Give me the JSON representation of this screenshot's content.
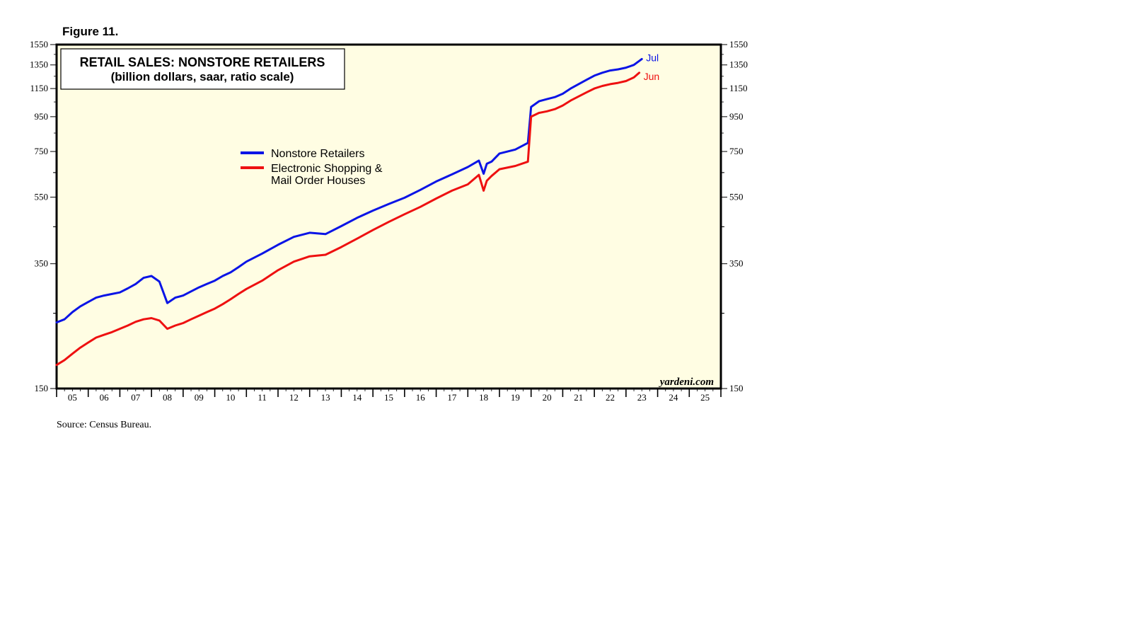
{
  "figure_label": "Figure 11.",
  "source": "Source: Census Bureau.",
  "watermark": "yardeni.com",
  "colors": {
    "plot_bg": "#fffde3",
    "series1": "#0a14e6",
    "series2": "#ee1010",
    "frame": "#000000"
  },
  "chart_data": {
    "type": "line",
    "title": "RETAIL SALES: NONSTORE RETAILERS",
    "subtitle": "(billion dollars, saar, ratio scale)",
    "y_scale": "log",
    "ylim": [
      150,
      1550
    ],
    "y_ticks": [
      150,
      350,
      550,
      750,
      950,
      1150,
      1350,
      1550
    ],
    "y_minor_ticks": [
      250,
      450,
      650
    ],
    "xlim": [
      2005.0,
      2026.0
    ],
    "x_tick_labels": [
      "05",
      "06",
      "07",
      "08",
      "09",
      "10",
      "11",
      "12",
      "13",
      "14",
      "15",
      "16",
      "17",
      "18",
      "19",
      "20",
      "21",
      "22",
      "23",
      "24",
      "25"
    ],
    "legend": [
      "Nonstore Retailers",
      "Electronic Shopping & Mail Order Houses"
    ],
    "series": [
      {
        "name": "Nonstore Retailers",
        "color": "#0a14e6",
        "end_label": "Jul",
        "x": [
          2005.0,
          2005.25,
          2005.5,
          2005.75,
          2006.0,
          2006.25,
          2006.5,
          2006.75,
          2007.0,
          2007.25,
          2007.5,
          2007.75,
          2008.0,
          2008.25,
          2008.5,
          2008.75,
          2009.0,
          2009.25,
          2009.5,
          2009.75,
          2010.0,
          2010.25,
          2010.5,
          2010.75,
          2011.0,
          2011.5,
          2012.0,
          2012.5,
          2013.0,
          2013.5,
          2014.0,
          2014.5,
          2015.0,
          2015.5,
          2016.0,
          2016.5,
          2017.0,
          2017.5,
          2018.0,
          2018.35,
          2018.5,
          2018.6,
          2018.75,
          2019.0,
          2019.5,
          2019.9,
          2020.0,
          2020.25,
          2020.5,
          2020.75,
          2021.0,
          2021.25,
          2021.5,
          2021.75,
          2022.0,
          2022.25,
          2022.5,
          2022.75,
          2023.0,
          2023.25,
          2023.5
        ],
        "values": [
          235,
          240,
          252,
          262,
          270,
          278,
          282,
          285,
          288,
          296,
          305,
          318,
          322,
          310,
          268,
          278,
          282,
          290,
          298,
          305,
          312,
          322,
          330,
          342,
          355,
          375,
          398,
          420,
          432,
          428,
          452,
          478,
          502,
          525,
          548,
          578,
          612,
          642,
          675,
          705,
          645,
          690,
          700,
          740,
          760,
          795,
          1015,
          1055,
          1070,
          1085,
          1110,
          1150,
          1185,
          1220,
          1255,
          1280,
          1300,
          1310,
          1325,
          1350,
          1405
        ]
      },
      {
        "name": "Electronic Shopping & Mail Order Houses",
        "color": "#ee1010",
        "end_label": "Jun",
        "x": [
          2005.0,
          2005.25,
          2005.5,
          2005.75,
          2006.0,
          2006.25,
          2006.5,
          2006.75,
          2007.0,
          2007.25,
          2007.5,
          2007.75,
          2008.0,
          2008.25,
          2008.5,
          2008.75,
          2009.0,
          2009.25,
          2009.5,
          2009.75,
          2010.0,
          2010.25,
          2010.5,
          2010.75,
          2011.0,
          2011.5,
          2012.0,
          2012.5,
          2013.0,
          2013.5,
          2014.0,
          2014.5,
          2015.0,
          2015.5,
          2016.0,
          2016.5,
          2017.0,
          2017.5,
          2018.0,
          2018.35,
          2018.5,
          2018.6,
          2018.75,
          2019.0,
          2019.5,
          2019.9,
          2020.0,
          2020.25,
          2020.5,
          2020.75,
          2021.0,
          2021.25,
          2021.5,
          2021.75,
          2022.0,
          2022.25,
          2022.5,
          2022.75,
          2023.0,
          2023.25,
          2023.42
        ],
        "values": [
          176,
          182,
          190,
          198,
          205,
          212,
          216,
          220,
          225,
          230,
          236,
          240,
          242,
          238,
          225,
          230,
          234,
          240,
          246,
          252,
          258,
          266,
          275,
          285,
          295,
          312,
          335,
          355,
          368,
          372,
          392,
          415,
          440,
          465,
          490,
          515,
          545,
          575,
          600,
          640,
          575,
          615,
          635,
          665,
          680,
          700,
          950,
          975,
          985,
          1000,
          1025,
          1060,
          1090,
          1120,
          1150,
          1170,
          1185,
          1195,
          1210,
          1240,
          1280
        ]
      }
    ]
  }
}
